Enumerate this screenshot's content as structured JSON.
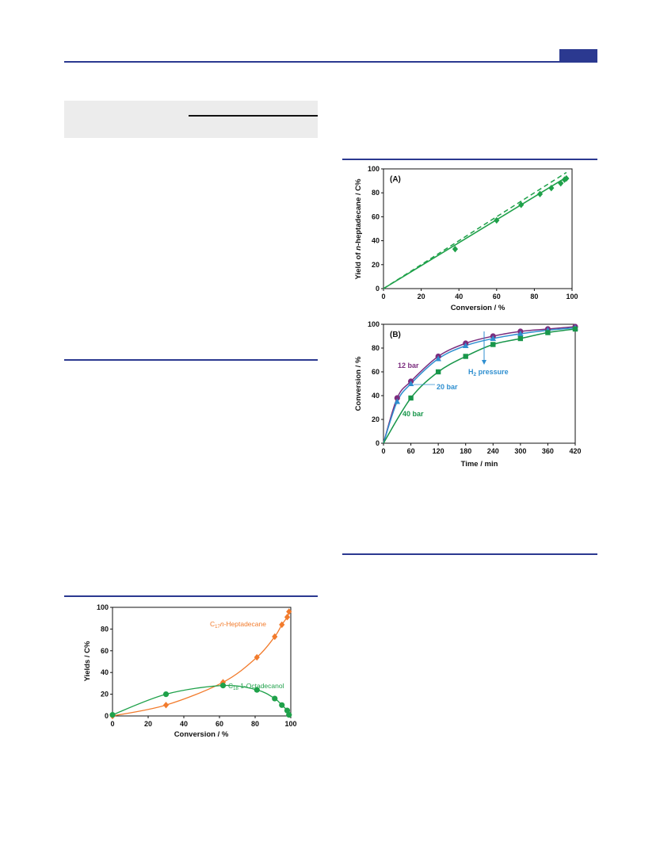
{
  "page": {
    "colors": {
      "rule": "#2b3990",
      "green": "#1fa14a",
      "orange": "#f27b2c",
      "purple": "#7b2d7e",
      "blue": "#2f8fd0",
      "dark_green": "#18964a"
    }
  },
  "figure_left": {
    "chart_data": {
      "type": "scatter",
      "title": "",
      "xlabel": "Conversion / %",
      "ylabel": "Yields / C%",
      "xlim": [
        0,
        100
      ],
      "ylim": [
        0,
        100
      ],
      "xticks": [
        "0",
        "20",
        "40",
        "60",
        "80",
        "100"
      ],
      "yticks": [
        "0",
        "20",
        "40",
        "60",
        "80",
        "100"
      ],
      "series": [
        {
          "name": "C17 n-Heptadecane",
          "label_sub": "17",
          "label_main": "C",
          "label_rest": " n-Heptadecane",
          "color": "#f27b2c",
          "marker": "diamond",
          "x": [
            0,
            30,
            62,
            81,
            91,
            95,
            98,
            99
          ],
          "y": [
            0,
            10,
            31,
            54,
            73,
            84,
            91,
            96
          ]
        },
        {
          "name": "C18 1-Octadecanol",
          "label_sub": "18",
          "label_main": "C",
          "label_rest": " 1-Octadecanol",
          "color": "#1fa14a",
          "marker": "circle",
          "x": [
            0,
            30,
            62,
            81,
            91,
            95,
            98,
            99
          ],
          "y": [
            1,
            20,
            28,
            24,
            16,
            10,
            5,
            1
          ]
        }
      ]
    }
  },
  "figure_right_a": {
    "chart_data": {
      "type": "scatter",
      "panel_label": "(A)",
      "xlabel": "Conversion / %",
      "ylabel_parts": [
        "Yield of ",
        "n",
        "-heptadecane / C%"
      ],
      "xlim": [
        0,
        100
      ],
      "ylim": [
        0,
        100
      ],
      "xticks": [
        "0",
        "20",
        "40",
        "60",
        "80",
        "100"
      ],
      "yticks": [
        "0",
        "20",
        "40",
        "60",
        "80",
        "100"
      ],
      "series": [
        {
          "color": "#1fa14a",
          "marker": "diamond",
          "x": [
            38,
            60,
            73,
            83,
            89,
            94,
            96,
            97
          ],
          "y": [
            33,
            57,
            70,
            79,
            84,
            88,
            91,
            92
          ]
        }
      ]
    }
  },
  "figure_right_b": {
    "chart_data": {
      "type": "line",
      "panel_label": "(B)",
      "xlabel": "Time / min",
      "ylabel": "Conversion / %",
      "xlim": [
        0,
        420
      ],
      "ylim": [
        0,
        100
      ],
      "xticks": [
        "0",
        "60",
        "120",
        "180",
        "240",
        "300",
        "360",
        "420"
      ],
      "yticks": [
        "0",
        "20",
        "40",
        "60",
        "80",
        "100"
      ],
      "annotation": {
        "main": "H",
        "sub": "2",
        "rest": " pressure"
      },
      "series": [
        {
          "name": "12 bar",
          "color": "#7b2d7e",
          "marker": "circle",
          "x": [
            0,
            30,
            60,
            120,
            180,
            240,
            300,
            360,
            420
          ],
          "y": [
            0,
            38,
            52,
            73,
            84,
            90,
            94,
            96,
            98
          ]
        },
        {
          "name": "20 bar",
          "color": "#2f8fd0",
          "marker": "triangle",
          "x": [
            0,
            30,
            60,
            120,
            180,
            240,
            300,
            360,
            420
          ],
          "y": [
            0,
            35,
            50,
            71,
            82,
            88,
            92,
            95,
            97
          ]
        },
        {
          "name": "40 bar",
          "color": "#18964a",
          "marker": "square",
          "x": [
            0,
            60,
            120,
            180,
            240,
            300,
            360,
            420
          ],
          "y": [
            0,
            38,
            60,
            73,
            83,
            88,
            93,
            96
          ]
        }
      ]
    }
  }
}
